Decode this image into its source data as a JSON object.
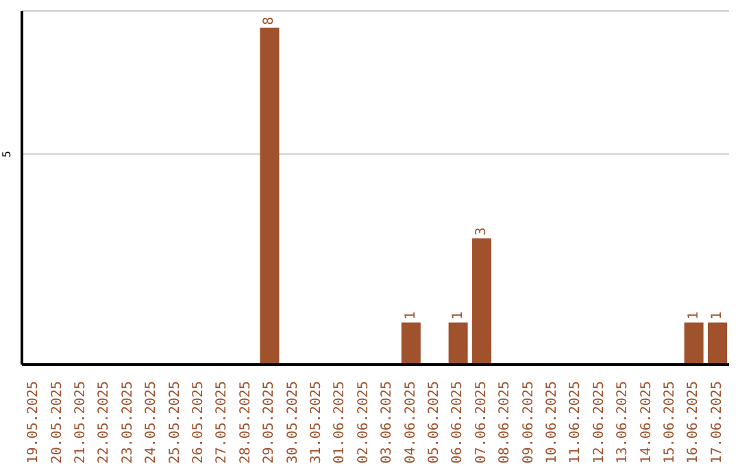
{
  "chart_data": {
    "type": "bar",
    "categories": [
      "19.05.2025",
      "20.05.2025",
      "21.05.2025",
      "22.05.2025",
      "23.05.2025",
      "24.05.2025",
      "25.05.2025",
      "26.05.2025",
      "27.05.2025",
      "28.05.2025",
      "29.05.2025",
      "30.05.2025",
      "31.05.2025",
      "01.06.2025",
      "02.06.2025",
      "03.06.2025",
      "04.06.2025",
      "05.06.2025",
      "06.06.2025",
      "07.06.2025",
      "08.06.2025",
      "09.06.2025",
      "10.06.2025",
      "11.06.2025",
      "12.06.2025",
      "13.06.2025",
      "14.06.2025",
      "15.06.2025",
      "16.06.2025",
      "17.06.2025"
    ],
    "values": [
      0,
      0,
      0,
      0,
      0,
      0,
      0,
      0,
      0,
      0,
      8,
      0,
      0,
      0,
      0,
      0,
      1,
      0,
      1,
      3,
      0,
      0,
      0,
      0,
      0,
      0,
      0,
      0,
      1,
      1
    ],
    "value_labels": [
      null,
      null,
      null,
      null,
      null,
      null,
      null,
      null,
      null,
      null,
      "8",
      null,
      null,
      null,
      null,
      null,
      "1",
      null,
      "1",
      "3",
      null,
      null,
      null,
      null,
      null,
      null,
      null,
      null,
      "1",
      "1"
    ],
    "color": "#a0522d",
    "ylim": [
      0,
      8.4
    ],
    "yticks": [
      5
    ],
    "grid": "y"
  }
}
